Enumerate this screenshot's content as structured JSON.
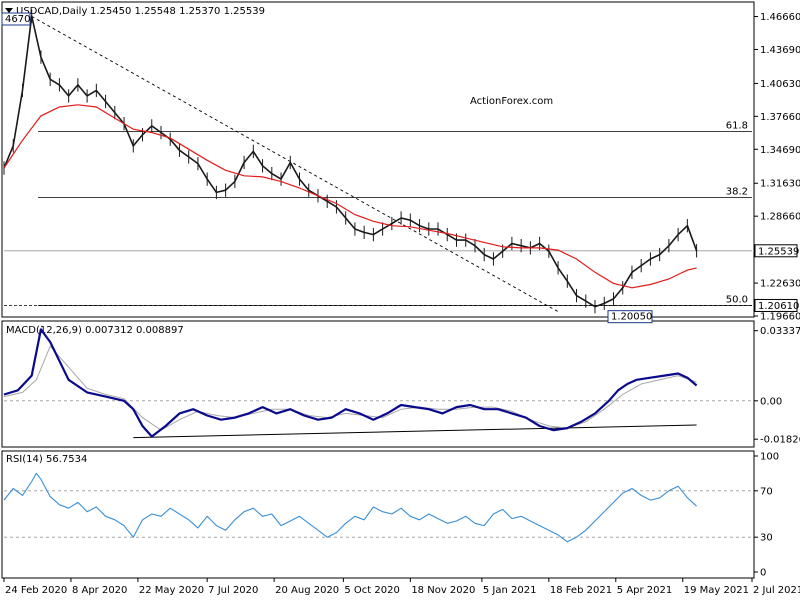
{
  "header": {
    "symbol": "USDCAD,Daily",
    "ohlc": "1.25450 1.25548 1.25370 1.25539"
  },
  "watermark": "ActionForex.com",
  "colors": {
    "price": "#1a1a1a",
    "ema": "#e31b1b",
    "macd": "#0a0a8c",
    "signal": "#a8a8a8",
    "rsi": "#3b8fd6",
    "grid": "#9a9a9a"
  },
  "chart_data": [
    {
      "type": "line",
      "panel": "price",
      "title": "USDCAD,Daily",
      "ylim": [
        1.1966,
        1.4788
      ],
      "y_ticks": [
        "1.46660",
        "1.43690",
        "1.40630",
        "1.37660",
        "1.34690",
        "1.31630",
        "1.28660",
        "1.22630",
        "1.19660"
      ],
      "y_tick_values": [
        1.4666,
        1.4369,
        1.4063,
        1.3766,
        1.3469,
        1.3163,
        1.2866,
        1.2263,
        1.1966
      ],
      "current_price_label": "1.25539",
      "current_price": 1.25539,
      "support_label": "1.20610",
      "support": 1.2061,
      "fib_levels": [
        {
          "label": "61.8",
          "value": 1.3628
        },
        {
          "label": "38.2",
          "value": 1.3033
        },
        {
          "label": "50.0",
          "value": 1.2061
        }
      ],
      "annotations": [
        {
          "label": "4670",
          "value": 1.4667
        },
        {
          "label": "1.20050",
          "value": 1.2005
        }
      ],
      "series": [
        {
          "role": "price",
          "x": [
            0,
            4,
            8,
            12,
            16,
            20,
            24,
            28,
            32,
            36,
            40,
            44,
            48,
            52,
            56,
            60,
            64,
            68,
            72,
            76,
            80,
            84,
            88,
            92,
            96,
            100,
            104,
            108,
            112,
            116,
            120,
            124,
            128,
            132,
            136,
            140,
            144,
            148,
            152,
            156,
            160,
            164,
            168,
            172,
            176,
            180,
            184,
            188,
            192,
            196,
            200,
            204,
            208,
            212,
            216,
            220,
            224,
            228,
            232,
            236,
            240,
            244,
            248,
            252,
            256,
            260,
            264,
            268,
            272,
            276,
            280,
            284,
            288,
            292,
            296,
            300
          ],
          "values": [
            1.33,
            1.35,
            1.4,
            1.467,
            1.43,
            1.41,
            1.405,
            1.395,
            1.405,
            1.395,
            1.4,
            1.39,
            1.38,
            1.37,
            1.35,
            1.36,
            1.368,
            1.362,
            1.356,
            1.346,
            1.34,
            1.334,
            1.32,
            1.308,
            1.31,
            1.318,
            1.335,
            1.345,
            1.332,
            1.325,
            1.32,
            1.335,
            1.32,
            1.31,
            1.305,
            1.3,
            1.295,
            1.285,
            1.275,
            1.272,
            1.27,
            1.275,
            1.28,
            1.285,
            1.283,
            1.278,
            1.275,
            1.275,
            1.27,
            1.265,
            1.265,
            1.26,
            1.252,
            1.248,
            1.255,
            1.262,
            1.26,
            1.258,
            1.262,
            1.255,
            1.24,
            1.228,
            1.215,
            1.21,
            1.205,
            1.208,
            1.212,
            1.222,
            1.236,
            1.242,
            1.248,
            1.252,
            1.26,
            1.27,
            1.278,
            1.2554
          ]
        },
        {
          "role": "ema",
          "x": [
            0,
            8,
            16,
            24,
            32,
            40,
            48,
            56,
            64,
            72,
            80,
            88,
            96,
            104,
            112,
            120,
            128,
            136,
            144,
            152,
            160,
            168,
            176,
            184,
            192,
            200,
            208,
            216,
            224,
            232,
            240,
            248,
            256,
            264,
            272,
            280,
            288,
            296,
            300
          ],
          "values": [
            1.33,
            1.355,
            1.377,
            1.385,
            1.387,
            1.385,
            1.375,
            1.365,
            1.362,
            1.357,
            1.347,
            1.337,
            1.328,
            1.323,
            1.322,
            1.318,
            1.312,
            1.305,
            1.298,
            1.288,
            1.282,
            1.278,
            1.277,
            1.274,
            1.271,
            1.267,
            1.263,
            1.259,
            1.258,
            1.258,
            1.256,
            1.248,
            1.236,
            1.226,
            1.222,
            1.225,
            1.23,
            1.238,
            1.24
          ]
        }
      ],
      "trendline": {
        "x": [
          12,
          240
        ],
        "values": [
          1.4667,
          1.2005
        ]
      }
    },
    {
      "type": "line",
      "panel": "macd",
      "title": "MACD(12,26,9) 0.007312 0.008897",
      "ylim": [
        -0.0215,
        0.0375
      ],
      "y_ticks": [
        "0.03337",
        "0.00",
        "-0.018262"
      ],
      "y_tick_values": [
        0.03337,
        0.0,
        -0.018262
      ],
      "series": [
        {
          "role": "macd",
          "x": [
            0,
            6,
            12,
            16,
            20,
            28,
            36,
            44,
            52,
            56,
            60,
            64,
            70,
            76,
            82,
            88,
            94,
            100,
            106,
            112,
            118,
            124,
            130,
            136,
            142,
            148,
            154,
            160,
            166,
            172,
            178,
            184,
            190,
            196,
            202,
            208,
            214,
            220,
            226,
            232,
            238,
            244,
            250,
            256,
            262,
            266,
            270,
            274,
            280,
            286,
            292,
            296,
            300
          ],
          "values": [
            0.003,
            0.005,
            0.012,
            0.034,
            0.028,
            0.01,
            0.004,
            0.002,
            0.0,
            -0.004,
            -0.012,
            -0.017,
            -0.012,
            -0.006,
            -0.004,
            -0.007,
            -0.009,
            -0.008,
            -0.006,
            -0.003,
            -0.006,
            -0.004,
            -0.007,
            -0.009,
            -0.008,
            -0.004,
            -0.006,
            -0.009,
            -0.006,
            -0.002,
            -0.003,
            -0.004,
            -0.006,
            -0.003,
            -0.002,
            -0.004,
            -0.004,
            -0.006,
            -0.008,
            -0.012,
            -0.014,
            -0.013,
            -0.01,
            -0.006,
            0.0,
            0.005,
            0.008,
            0.01,
            0.011,
            0.012,
            0.013,
            0.011,
            0.0073
          ]
        },
        {
          "role": "signal",
          "x": [
            0,
            8,
            14,
            20,
            28,
            36,
            44,
            52,
            60,
            68,
            76,
            84,
            92,
            100,
            108,
            116,
            124,
            132,
            140,
            148,
            156,
            164,
            172,
            180,
            188,
            196,
            204,
            212,
            220,
            228,
            236,
            244,
            252,
            260,
            268,
            276,
            284,
            292,
            300
          ],
          "values": [
            0.002,
            0.004,
            0.01,
            0.026,
            0.016,
            0.006,
            0.003,
            0.001,
            -0.008,
            -0.014,
            -0.009,
            -0.005,
            -0.007,
            -0.008,
            -0.006,
            -0.004,
            -0.004,
            -0.007,
            -0.008,
            -0.006,
            -0.007,
            -0.008,
            -0.004,
            -0.003,
            -0.004,
            -0.004,
            -0.003,
            -0.003,
            -0.005,
            -0.009,
            -0.012,
            -0.013,
            -0.01,
            -0.004,
            0.003,
            0.008,
            0.01,
            0.012,
            0.0089
          ]
        }
      ],
      "trendline": {
        "x": [
          56,
          300
        ],
        "values": [
          -0.0175,
          -0.0115
        ]
      }
    },
    {
      "type": "line",
      "panel": "rsi",
      "title": "RSI(14) 56.7534",
      "ylim": [
        0,
        100
      ],
      "y_ticks": [
        "100",
        "70",
        "30",
        "0"
      ],
      "y_tick_values": [
        100,
        70,
        30,
        0
      ],
      "series": [
        {
          "role": "rsi",
          "x": [
            0,
            4,
            8,
            12,
            14,
            16,
            20,
            24,
            28,
            32,
            36,
            40,
            44,
            48,
            52,
            56,
            60,
            64,
            68,
            72,
            76,
            80,
            84,
            88,
            92,
            96,
            100,
            104,
            108,
            112,
            116,
            120,
            124,
            128,
            132,
            136,
            140,
            144,
            148,
            152,
            156,
            160,
            164,
            168,
            172,
            176,
            180,
            184,
            188,
            192,
            196,
            200,
            204,
            208,
            212,
            216,
            220,
            224,
            228,
            232,
            236,
            240,
            244,
            248,
            252,
            256,
            260,
            264,
            268,
            272,
            276,
            280,
            284,
            288,
            292,
            296,
            300
          ],
          "values": [
            62,
            72,
            66,
            78,
            85,
            80,
            65,
            58,
            55,
            60,
            52,
            56,
            48,
            45,
            40,
            30,
            45,
            50,
            48,
            55,
            50,
            45,
            38,
            48,
            40,
            36,
            45,
            52,
            55,
            48,
            50,
            40,
            44,
            48,
            42,
            36,
            30,
            34,
            42,
            48,
            45,
            56,
            52,
            50,
            55,
            48,
            45,
            50,
            46,
            42,
            44,
            48,
            42,
            40,
            50,
            54,
            46,
            48,
            44,
            40,
            36,
            32,
            26,
            30,
            36,
            44,
            52,
            60,
            68,
            72,
            66,
            62,
            64,
            70,
            74,
            64,
            56.75
          ]
        }
      ]
    }
  ],
  "x_axis": {
    "labels": [
      "24 Feb 2020",
      "8 Apr 2020",
      "22 May 2020",
      "7 Jul 2020",
      "20 Aug 2020",
      "5 Oct 2020",
      "18 Nov 2020",
      "5 Jan 2021",
      "18 Feb 2021",
      "5 Apr 2021",
      "19 May 2021",
      "2 Jul 2021"
    ],
    "positions": [
      0,
      29,
      58,
      88,
      117,
      147,
      176,
      207,
      236,
      265,
      294,
      324
    ],
    "domain": [
      0,
      324
    ]
  }
}
